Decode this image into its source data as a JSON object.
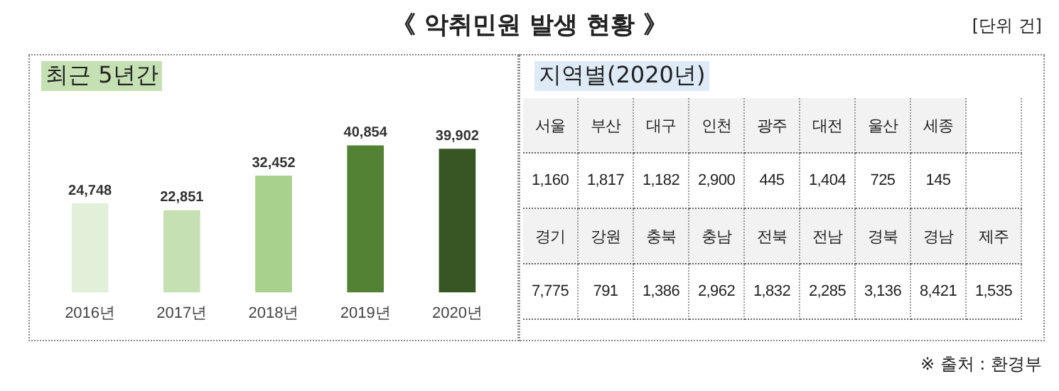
{
  "chart_data": [
    {
      "type": "bar",
      "title": "《 악취민원 발생 현황 》",
      "subtitle": "최근 5년간",
      "annotations": [
        "[단위 건]"
      ],
      "categories": [
        "2016년",
        "2017년",
        "2018년",
        "2019년",
        "2020년"
      ],
      "values": [
        24748,
        22851,
        32452,
        40854,
        39902
      ],
      "colors": [
        "#e2efd9",
        "#c5e0b3",
        "#a9d18e",
        "#548235",
        "#375623"
      ],
      "value_labels": [
        "24,748",
        "22,851",
        "32,452",
        "40,854",
        "39,902"
      ],
      "grid": false,
      "legend": false,
      "tick_labels": "x"
    },
    {
      "type": "other",
      "title": "지역별(2020년)",
      "annotations": [
        "※ 출처 : 환경부"
      ],
      "categories": [
        "서울",
        "부산",
        "대구",
        "인천",
        "광주",
        "대전",
        "울산",
        "세종",
        "경기",
        "강원",
        "충북",
        "충남",
        "전북",
        "전남",
        "경북",
        "경남",
        "제주"
      ],
      "values": [
        1160,
        1817,
        1182,
        2900,
        445,
        1404,
        725,
        145,
        7775,
        791,
        1386,
        2962,
        1832,
        2285,
        3136,
        8421,
        1535
      ],
      "value_labels": [
        "1,160",
        "1,817",
        "1,182",
        "2,900",
        "445",
        "1,404",
        "725",
        "145",
        "7,775",
        "791",
        "1,386",
        "2,962",
        "1,832",
        "2,285",
        "3,136",
        "8,421",
        "1,535"
      ]
    }
  ]
}
